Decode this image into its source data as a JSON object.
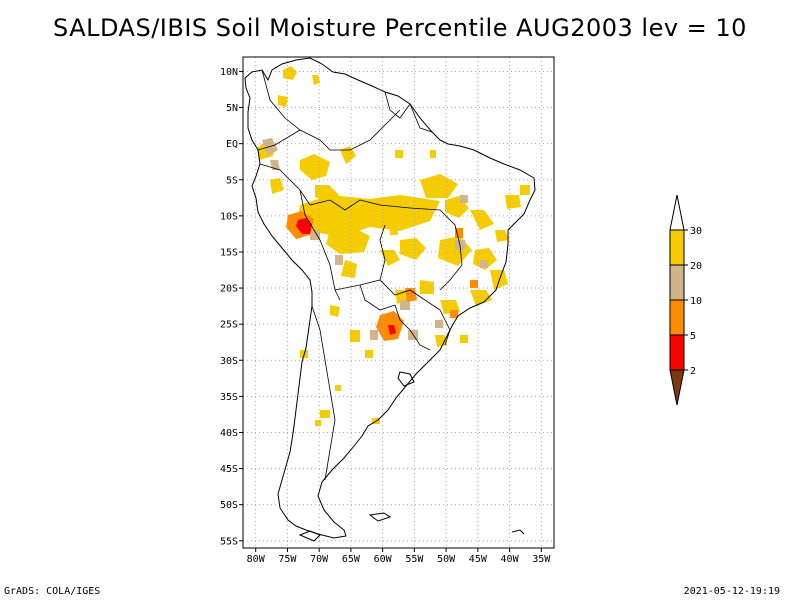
{
  "title": "SALDAS/IBIS Soil Moisture Percentile AUG2003 lev = 10",
  "footer": {
    "left": "GrADS: COLA/IGES",
    "right": "2021-05-12-19:19"
  },
  "map": {
    "lat_labels": [
      "10N",
      "5N",
      "EQ",
      "5S",
      "10S",
      "15S",
      "20S",
      "25S",
      "30S",
      "35S",
      "40S",
      "45S",
      "50S",
      "55S"
    ],
    "lat_values": [
      10,
      5,
      0,
      -5,
      -10,
      -15,
      -20,
      -25,
      -30,
      -35,
      -40,
      -45,
      -50,
      -55
    ],
    "lon_labels": [
      "80W",
      "75W",
      "70W",
      "65W",
      "60W",
      "55W",
      "50W",
      "45W",
      "40W",
      "35W"
    ],
    "lon_values": [
      -80,
      -75,
      -70,
      -65,
      -60,
      -55,
      -50,
      -45,
      -40,
      -35
    ],
    "lon_range": [
      -82,
      -33
    ],
    "lat_range": [
      -56,
      12
    ],
    "grid": "dotted"
  },
  "legend": {
    "levels": [
      "2",
      "5",
      "10",
      "20",
      "30"
    ],
    "colors": {
      "below_2": "#7a3a10",
      "2_5": "#ff0000",
      "5_10": "#ff8c00",
      "10_20": "#d2b48c",
      "20_30": "#f5cc00",
      "above_30": "#ffffff"
    }
  },
  "colors": {
    "coast": "#000000",
    "grid": "#aaaaaa"
  }
}
